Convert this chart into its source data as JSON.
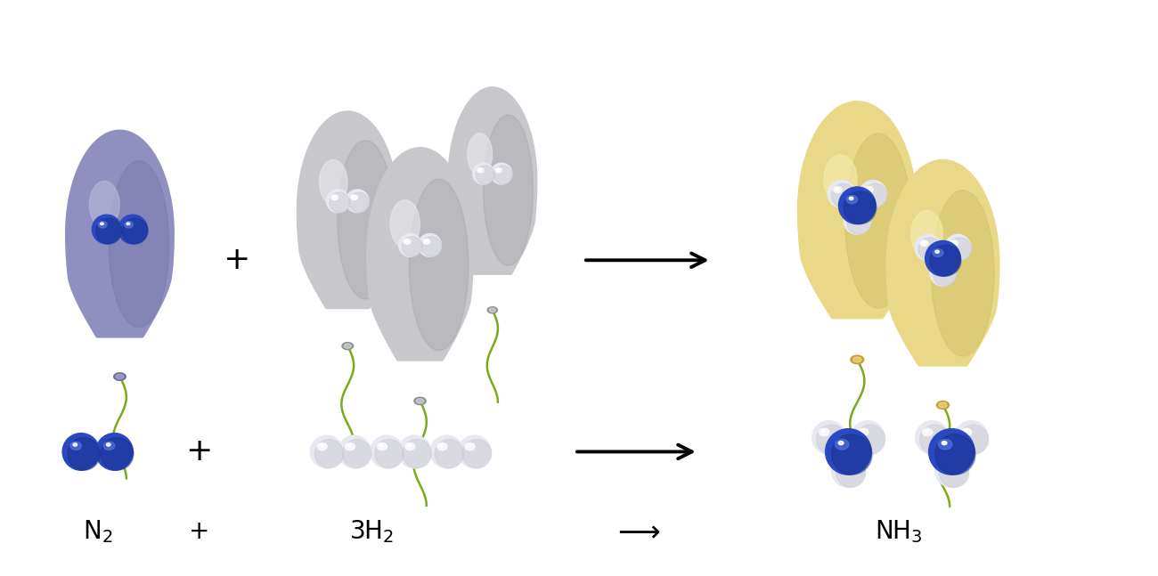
{
  "background_color": "#ffffff",
  "n2_balloon_color": "#9090c0",
  "n2_balloon_shade": "#7070a8",
  "n2_balloon_light": "#b8b8d8",
  "h2_balloon_color": "#c8c8cc",
  "h2_balloon_shade": "#a0a0a4",
  "h2_balloon_light": "#e8e8ec",
  "nh3_balloon_color": "#e8d888",
  "nh3_balloon_shade": "#c8b858",
  "nh3_balloon_light": "#f4ecb0",
  "n_atom_dark": "#1a2e88",
  "n_atom_mid": "#2a48c0",
  "n_atom_light": "#5070d8",
  "h_atom_dark": "#c8c8d0",
  "h_atom_mid": "#e8e8f0",
  "h_atom_light": "#ffffff",
  "string_color": "#7aaa18",
  "knot_n2_color": "#7070a0",
  "knot_h2_color": "#909090",
  "knot_nh3_color": "#c8a030",
  "arrow_color": "#000000",
  "label_fontsize": 20,
  "plus_fontsize": 26
}
